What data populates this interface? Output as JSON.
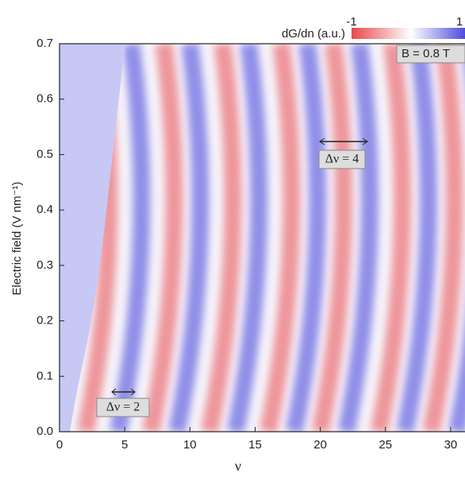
{
  "chart_data": {
    "type": "heatmap",
    "xlabel": "ν",
    "ylabel": "Electric field (V nm⁻¹)",
    "xlim": [
      0,
      31.1
    ],
    "ylim": [
      0,
      0.7
    ],
    "xticks": [
      0,
      5,
      10,
      15,
      20,
      25,
      30
    ],
    "yticks": [
      {
        "value": 0,
        "label": "0.0"
      },
      0.1,
      0.2,
      0.3,
      0.4,
      0.5,
      0.6,
      0.7
    ],
    "colorbar": {
      "label": "dG/dn (a.u.)",
      "clim": [
        -1,
        1
      ],
      "ticks": [
        -1,
        1
      ],
      "colors": [
        "#e8474b",
        "#ffffff",
        "#3a3ad8"
      ]
    },
    "annotations": [
      "B = 0.8 T",
      "Δν = 4",
      "Δν = 2"
    ]
  }
}
